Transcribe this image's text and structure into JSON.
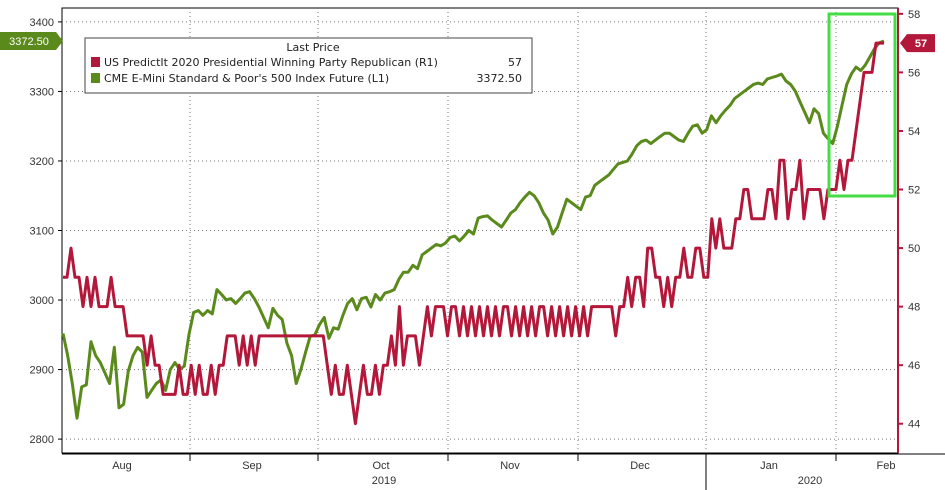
{
  "chart_data": {
    "type": "line",
    "legend": {
      "title": "Last Price",
      "placement": "top-left",
      "entries": [
        {
          "label": "US PredictIt 2020 Presidential Winning Party Republican  (R1)",
          "value": "57",
          "color": "#b3173a"
        },
        {
          "label": "CME E-Mini Standard & Poor's 500 Index Future  (L1)",
          "value": "3372.50",
          "color": "#5a8a1c"
        }
      ]
    },
    "x_axis": {
      "months": [
        "Aug",
        "Sep",
        "Oct",
        "Nov",
        "Dec",
        "Jan",
        "Feb"
      ],
      "years": [
        "2019",
        "2020"
      ]
    },
    "y_left": {
      "ticks": [
        "2800",
        "2900",
        "3000",
        "3100",
        "3200",
        "3300",
        "3400"
      ],
      "range": [
        2780,
        3420
      ],
      "last_value_label": "3372.50",
      "last_value": 3372.5,
      "color": "#5a8a1c"
    },
    "y_right": {
      "ticks": [
        "44",
        "46",
        "48",
        "50",
        "52",
        "54",
        "56",
        "58"
      ],
      "range": [
        43,
        58.2
      ],
      "last_value_label": "57",
      "last_value": 57,
      "color": "#b3173a"
    },
    "grid": true,
    "highlight_box_color": "#44dd44",
    "series": [
      {
        "name": "US PredictIt 2020 Presidential Winning Party Republican (R1)",
        "axis": "right",
        "color": "#b3173a",
        "values": [
          49,
          49,
          50,
          49,
          49,
          48,
          49,
          48,
          49,
          48,
          48,
          48,
          49,
          48,
          48,
          48,
          47,
          47,
          47,
          47,
          47,
          46,
          47,
          46,
          46,
          45,
          45,
          45,
          45,
          46,
          45,
          45,
          46,
          45,
          46,
          45,
          45,
          46,
          45,
          46,
          46,
          47,
          47,
          47,
          46,
          47,
          46,
          47,
          46,
          47,
          47,
          47,
          47,
          47,
          47,
          47,
          47,
          47,
          47,
          47,
          47,
          47,
          47,
          47,
          47,
          47,
          46,
          45,
          46,
          45,
          45,
          46,
          45,
          44,
          45,
          46,
          45,
          45,
          46,
          45,
          46,
          46,
          47,
          46,
          48,
          46,
          47,
          47,
          47,
          46,
          47,
          48,
          47,
          48,
          48,
          48,
          47,
          48,
          48,
          47,
          48,
          47,
          48,
          47,
          48,
          47,
          48,
          47,
          48,
          47,
          48,
          48,
          47,
          48,
          47,
          48,
          47,
          48,
          47,
          48,
          48,
          47,
          48,
          47,
          48,
          47,
          48,
          47,
          48,
          47,
          48,
          47,
          48,
          48,
          48,
          48,
          48,
          48,
          47,
          48,
          48,
          49,
          48,
          49,
          49,
          48,
          50,
          50,
          49,
          49,
          48,
          49,
          48,
          49,
          49,
          50,
          49,
          49,
          50,
          50,
          49,
          49,
          51,
          50,
          51,
          50,
          50,
          50,
          51,
          51,
          52,
          52,
          51,
          51,
          51,
          51,
          52,
          52,
          51,
          53,
          53,
          51,
          52,
          52,
          53,
          51,
          52,
          52,
          52,
          52,
          51,
          52,
          52,
          52,
          53,
          52,
          53,
          53,
          54,
          55,
          56,
          56,
          56,
          57,
          57,
          57
        ]
      },
      {
        "name": "CME E-Mini Standard & Poor's 500 Index Future (L1)",
        "axis": "left",
        "color": "#5a8a1c",
        "values": [
          2952,
          2920,
          2880,
          2830,
          2875,
          2878,
          2940,
          2920,
          2910,
          2895,
          2880,
          2932,
          2845,
          2850,
          2898,
          2920,
          2932,
          2925,
          2860,
          2870,
          2880,
          2885,
          2870,
          2900,
          2910,
          2900,
          2905,
          2950,
          2982,
          2985,
          2978,
          2985,
          2980,
          3015,
          3008,
          3000,
          3002,
          2995,
          3002,
          3010,
          3012,
          3002,
          2990,
          2975,
          2960,
          2988,
          2978,
          2972,
          2938,
          2920,
          2880,
          2900,
          2925,
          2948,
          2950,
          2965,
          2975,
          2945,
          2960,
          2958,
          2978,
          2995,
          3002,
          2986,
          3002,
          3004,
          2990,
          3008,
          3000,
          3010,
          3012,
          3015,
          3030,
          3040,
          3040,
          3050,
          3045,
          3065,
          3070,
          3075,
          3080,
          3078,
          3082,
          3090,
          3092,
          3085,
          3092,
          3100,
          3095,
          3118,
          3120,
          3121,
          3115,
          3110,
          3105,
          3115,
          3125,
          3130,
          3140,
          3148,
          3155,
          3150,
          3140,
          3125,
          3115,
          3095,
          3105,
          3125,
          3145,
          3140,
          3135,
          3130,
          3148,
          3150,
          3165,
          3170,
          3175,
          3180,
          3188,
          3196,
          3198,
          3200,
          3210,
          3222,
          3228,
          3230,
          3225,
          3230,
          3235,
          3240,
          3240,
          3235,
          3230,
          3228,
          3240,
          3250,
          3252,
          3240,
          3245,
          3265,
          3255,
          3265,
          3273,
          3280,
          3290,
          3295,
          3300,
          3305,
          3310,
          3312,
          3310,
          3318,
          3320,
          3322,
          3325,
          3315,
          3310,
          3300,
          3285,
          3270,
          3255,
          3275,
          3268,
          3240,
          3232,
          3225,
          3250,
          3280,
          3310,
          3325,
          3335,
          3330,
          3338,
          3350,
          3362,
          3370,
          3372.5
        ]
      }
    ]
  }
}
